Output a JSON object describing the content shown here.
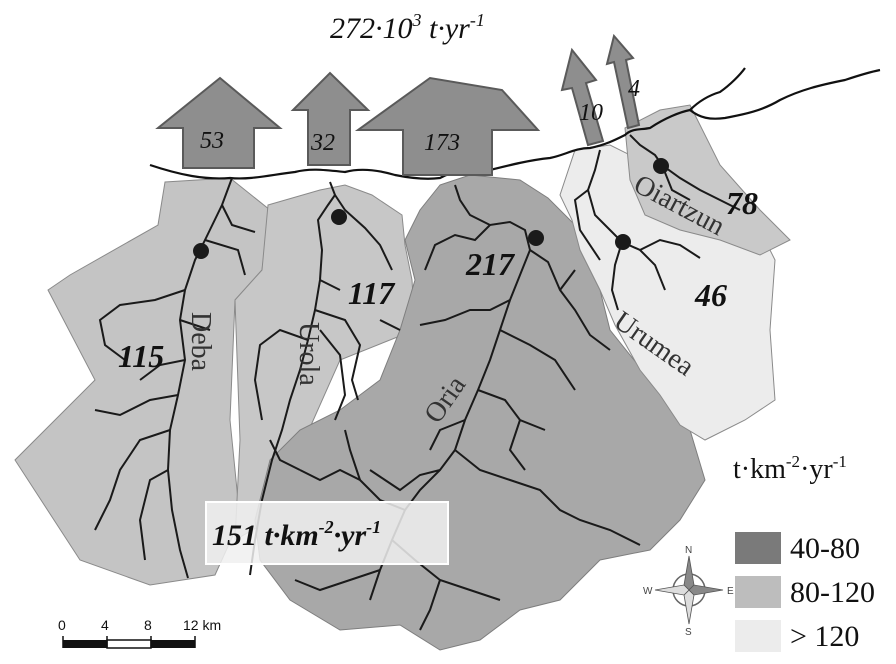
{
  "title": {
    "base": "272·10",
    "exp": "3",
    "mid": " t·yr",
    "exp2": "-1"
  },
  "exports": [
    {
      "value": "53"
    },
    {
      "value": "32"
    },
    {
      "value": "173"
    },
    {
      "value": "10"
    },
    {
      "value": "4"
    }
  ],
  "basins": [
    {
      "name": "Deba",
      "yield": "115"
    },
    {
      "name": "Urola",
      "yield": "117"
    },
    {
      "name": "Oria",
      "yield": "217"
    },
    {
      "name": "Urumea",
      "yield": "46"
    },
    {
      "name": "Oiartzun",
      "yield": "78"
    }
  ],
  "overall_yield": {
    "value": "151 t·km",
    "exp1": "-2",
    "mid": "·yr",
    "exp2": "-1"
  },
  "legend": {
    "unit_base": "t·km",
    "unit_exp1": "-2",
    "unit_mid": "·yr",
    "unit_exp2": "-1",
    "items": [
      {
        "label": "40-80",
        "color": "#7a7a7a"
      },
      {
        "label": "80-120",
        "color": "#bdbdbd"
      },
      {
        "label": "> 120",
        "color": "#ececec"
      }
    ]
  },
  "compass": {
    "n": "N",
    "s": "S",
    "e": "E",
    "w": "W"
  },
  "scale_bar": {
    "ticks": [
      "0",
      "4",
      "8",
      "12 km"
    ]
  },
  "colors": {
    "dark_basin": "#a3a3a3",
    "mid_basin": "#c4c4c4",
    "light_basin": "#ececec",
    "arrow": "#8e8e8e"
  }
}
